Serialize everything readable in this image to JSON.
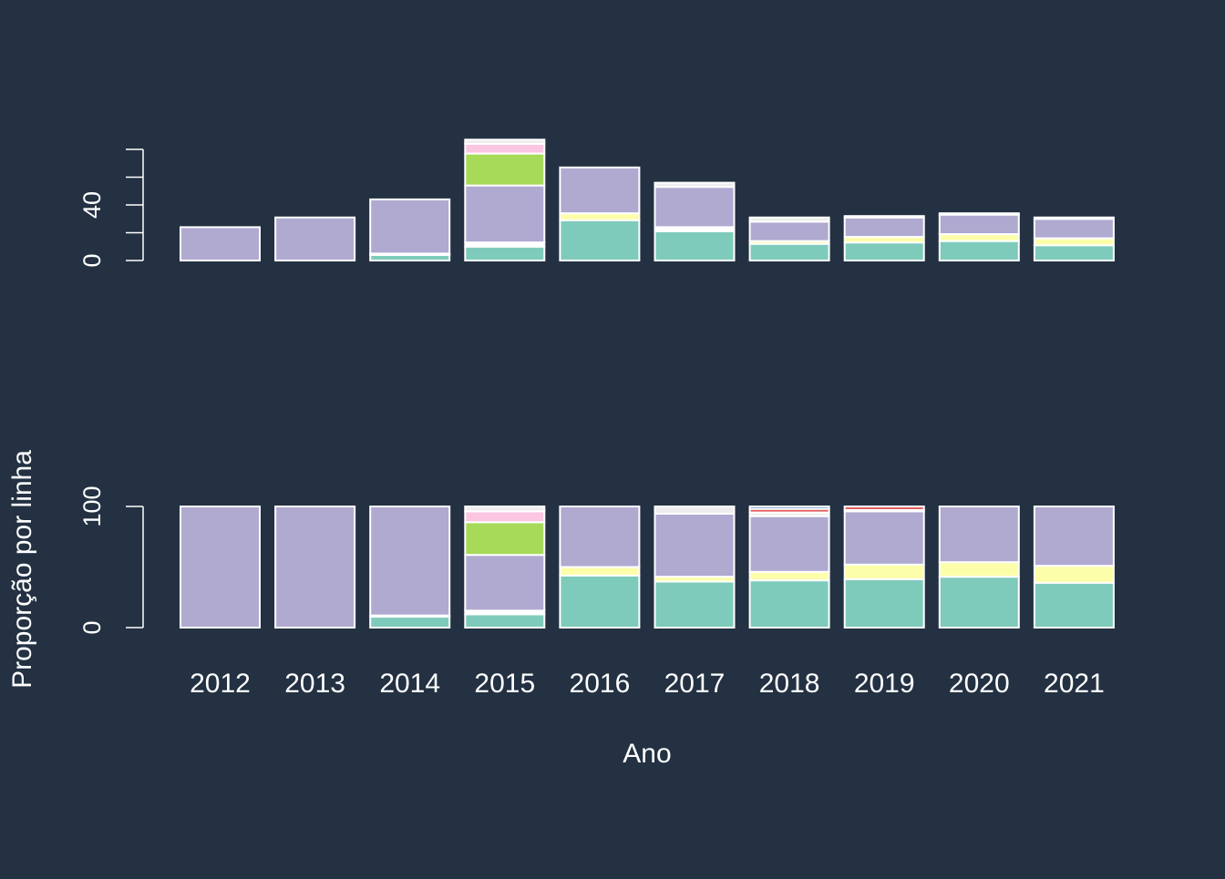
{
  "chart_data": [
    {
      "type": "bar",
      "stacked": true,
      "panel": "top",
      "categories": [
        "2012",
        "2013",
        "2014",
        "2015",
        "2016",
        "2017",
        "2018",
        "2019",
        "2020",
        "2021"
      ],
      "ylim": [
        0,
        80
      ],
      "yticks": [
        0,
        20,
        40,
        60,
        80
      ],
      "ytick_labels": [
        "0",
        "",
        "40",
        "",
        ""
      ],
      "series": [
        {
          "color": "#7fcbbb",
          "values": [
            0,
            0,
            4,
            10,
            29,
            21,
            12,
            13,
            14,
            11
          ]
        },
        {
          "color": "#ffffff",
          "values": [
            0,
            0,
            1,
            3,
            0,
            2,
            0,
            0,
            0,
            0
          ]
        },
        {
          "color": "#fdfea9",
          "values": [
            0,
            0,
            0,
            0,
            5,
            1,
            2,
            4,
            5,
            5
          ]
        },
        {
          "color": "#b0aad1",
          "values": [
            24,
            31,
            39,
            41,
            33,
            29,
            14,
            14,
            14,
            14
          ]
        },
        {
          "color": "#a8da5a",
          "values": [
            0,
            0,
            0,
            23,
            0,
            0,
            0,
            0,
            0,
            0
          ]
        },
        {
          "color": "#fbc6e2",
          "values": [
            0,
            0,
            0,
            7,
            0,
            0,
            0,
            0,
            0,
            0
          ]
        },
        {
          "color": "#ededed",
          "values": [
            0,
            0,
            0,
            3,
            0,
            3,
            3,
            1,
            1,
            1
          ]
        }
      ]
    },
    {
      "type": "bar",
      "stacked": true,
      "panel": "bottom",
      "categories": [
        "2012",
        "2013",
        "2014",
        "2015",
        "2016",
        "2017",
        "2018",
        "2019",
        "2020",
        "2021"
      ],
      "ylabel": "Proporção por linha",
      "xlabel": "Ano",
      "ylim": [
        0,
        100
      ],
      "yticks": [
        0,
        100
      ],
      "ytick_labels": [
        "0",
        "100"
      ],
      "series": [
        {
          "color": "#7fcbbb",
          "values": [
            0,
            0,
            9,
            11,
            43,
            38,
            39,
            40,
            42,
            37
          ]
        },
        {
          "color": "#ffffff",
          "values": [
            0,
            0,
            1,
            3,
            0,
            0,
            0,
            0,
            0,
            0
          ]
        },
        {
          "color": "#fdfea9",
          "values": [
            0,
            0,
            0,
            0,
            7,
            4,
            7,
            12,
            12,
            14
          ]
        },
        {
          "color": "#b0aad1",
          "values": [
            100,
            100,
            90,
            46,
            50,
            52,
            46,
            44,
            46,
            49
          ]
        },
        {
          "color": "#a8da5a",
          "values": [
            0,
            0,
            0,
            27,
            0,
            0,
            0,
            0,
            0,
            0
          ]
        },
        {
          "color": "#fbc6e2",
          "values": [
            0,
            0,
            0,
            9,
            0,
            0,
            0,
            0,
            0,
            0
          ]
        },
        {
          "color": "#ededed",
          "values": [
            0,
            0,
            0,
            4,
            0,
            6,
            3,
            1,
            0,
            0
          ]
        },
        {
          "color": "#e15f5f",
          "values": [
            0,
            0,
            0,
            0,
            0,
            0,
            3,
            3,
            0,
            0
          ]
        },
        {
          "color": "#5a8fc7",
          "values": [
            0,
            0,
            0,
            0,
            0,
            0,
            2,
            0,
            0,
            0
          ]
        }
      ]
    }
  ]
}
